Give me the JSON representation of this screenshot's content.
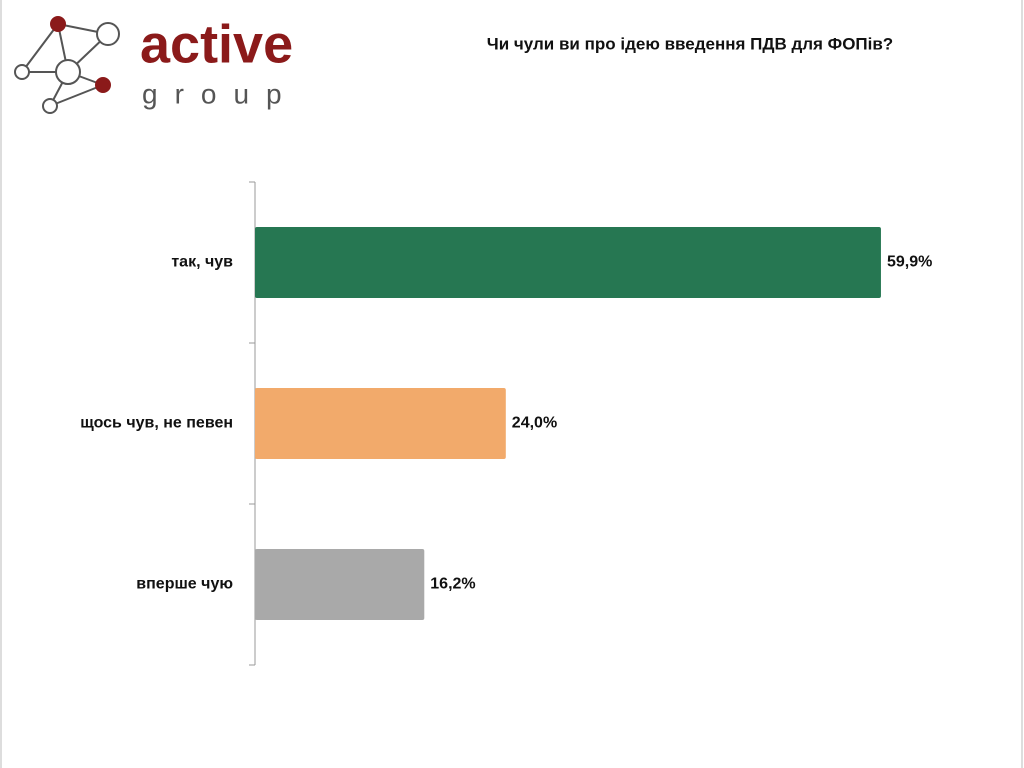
{
  "logo": {
    "name": "active",
    "tagline": "group"
  },
  "chart_data": {
    "type": "barh",
    "title": "Чи чули ви про ідею введення ПДВ для ФОПів?",
    "categories": [
      "так, чув",
      "щось чув, не певен",
      "вперше чую"
    ],
    "values": [
      59.9,
      24.0,
      16.2
    ],
    "value_labels": [
      "59,9%",
      "24,0%",
      "16,2%"
    ],
    "colors": [
      "#267752",
      "#f2aa6b",
      "#a9a9a9"
    ]
  }
}
